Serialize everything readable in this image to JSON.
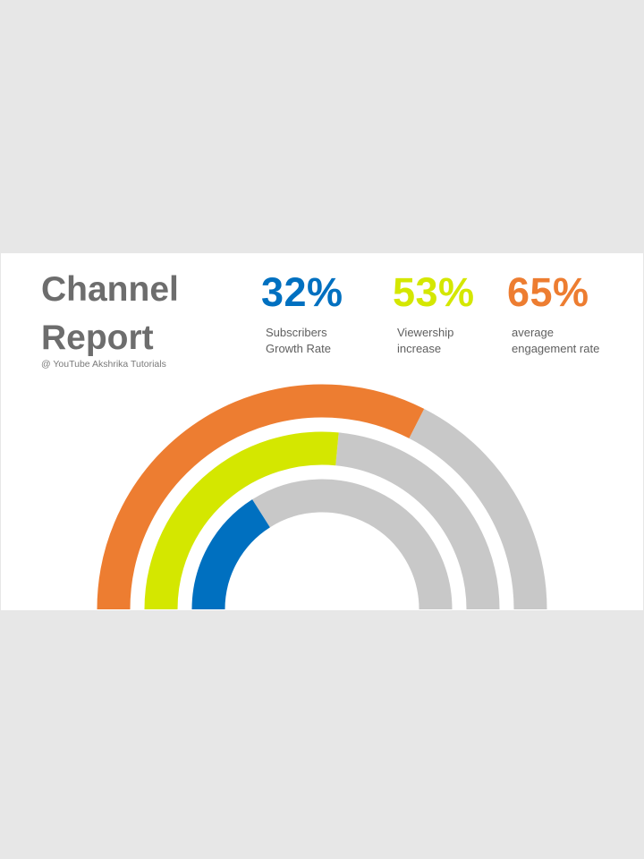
{
  "title": {
    "line1": "Channel",
    "line2": "Report"
  },
  "credit": "@ YouTube Akshrika Tutorials",
  "colors": {
    "blue": "#0070c0",
    "green": "#d4e700",
    "orange": "#ed7d31",
    "track": "#c8c8c8",
    "title": "#6d6d6d"
  },
  "stats": [
    {
      "value": "32%",
      "label_line1": "Subscribers",
      "label_line2": "Growth Rate",
      "color": "#0070c0"
    },
    {
      "value": "53%",
      "label_line1": "Viewership",
      "label_line2": "increase",
      "color": "#d4e700"
    },
    {
      "value": "65%",
      "label_line1": "average",
      "label_line2": "engagement rate",
      "color": "#ed7d31"
    }
  ],
  "chart_data": {
    "type": "semicircle-progress",
    "series": [
      {
        "name": "Subscribers Growth Rate",
        "value": 32,
        "max": 100,
        "color": "#0070c0"
      },
      {
        "name": "Viewership increase",
        "value": 53,
        "max": 100,
        "color": "#d4e700"
      },
      {
        "name": "average engagement rate",
        "value": 65,
        "max": 100,
        "color": "#ed7d31"
      }
    ],
    "track_color": "#c8c8c8"
  }
}
